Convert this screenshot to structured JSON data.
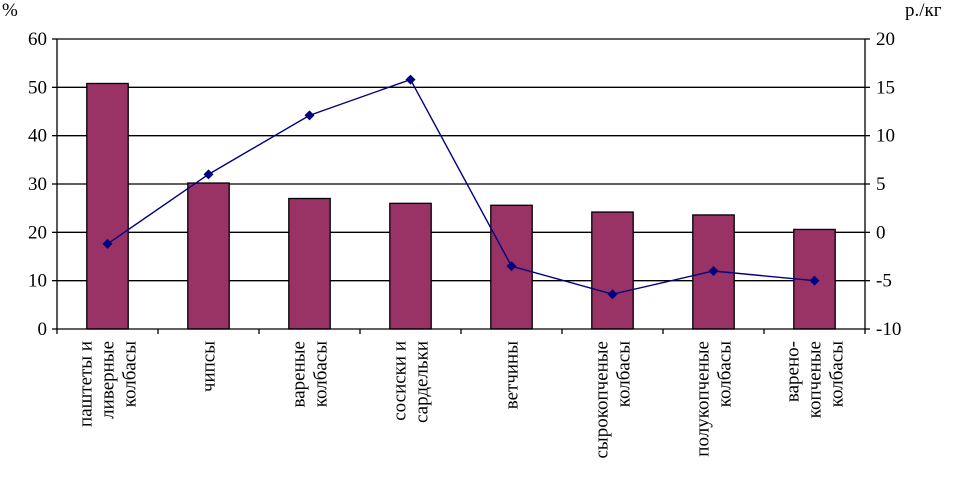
{
  "chart_data": {
    "type": "bar",
    "categories": [
      [
        "паштеты и",
        "ливерные",
        "колбасы"
      ],
      [
        "чипсы"
      ],
      [
        "вареные",
        "колбасы"
      ],
      [
        "сосиски и",
        "сардельки"
      ],
      [
        "ветчины"
      ],
      [
        "сырокопченые",
        "колбасы"
      ],
      [
        "полукопченые",
        "колбасы"
      ],
      [
        "варено-",
        "копченые",
        "колбасы"
      ]
    ],
    "series": [
      {
        "type": "bar",
        "axis": "left",
        "color": "#993366",
        "values": [
          50.8,
          30.2,
          27.0,
          26.0,
          25.6,
          24.2,
          23.6,
          20.6
        ]
      },
      {
        "type": "line",
        "axis": "right",
        "color": "#000080",
        "marker": "diamond",
        "values": [
          -1.2,
          6.0,
          12.1,
          15.8,
          -3.5,
          -6.4,
          -4.0,
          -5.0
        ]
      }
    ],
    "ylabel_left": "%",
    "ylabel_right": "р./кг",
    "ylim_left": [
      0,
      60
    ],
    "ylim_right": [
      -10,
      20
    ],
    "yticks_left": [
      "0",
      "10",
      "20",
      "30",
      "40",
      "50",
      "60"
    ],
    "yticks_right": [
      "-10",
      "-5",
      "0",
      "5",
      "10",
      "15",
      "20"
    ],
    "grid": true
  }
}
